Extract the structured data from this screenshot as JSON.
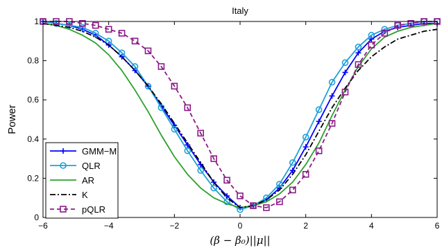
{
  "chart_data": {
    "type": "line",
    "title": "Italy",
    "xlabel": "(β − β₀)||μ||",
    "ylabel": "Power",
    "xlim": [
      -6,
      6
    ],
    "ylim": [
      0,
      1
    ],
    "xticks": [
      "−6",
      "−4",
      "−2",
      "0",
      "2",
      "4",
      "6"
    ],
    "yticks": [
      "0",
      "0.2",
      "0.4",
      "0.6",
      "0.8",
      "1"
    ],
    "grid": false,
    "legend_position": "bottom-left",
    "series": [
      {
        "name": "GMM−M",
        "color": "#0000ff",
        "marker": "plus",
        "dash": "solid",
        "x": [
          -6,
          -5.6,
          -5.2,
          -4.8,
          -4.4,
          -4,
          -3.6,
          -3.2,
          -2.8,
          -2.4,
          -2,
          -1.6,
          -1.2,
          -0.8,
          -0.4,
          0,
          0.4,
          0.8,
          1.2,
          1.6,
          2,
          2.4,
          2.8,
          3.2,
          3.6,
          4,
          4.4,
          4.8,
          5.2,
          5.6,
          6
        ],
        "y": [
          1.0,
          0.99,
          0.98,
          0.96,
          0.93,
          0.88,
          0.82,
          0.75,
          0.67,
          0.57,
          0.47,
          0.37,
          0.27,
          0.18,
          0.11,
          0.05,
          0.06,
          0.09,
          0.15,
          0.24,
          0.36,
          0.49,
          0.62,
          0.74,
          0.84,
          0.91,
          0.95,
          0.97,
          0.98,
          0.99,
          0.99
        ]
      },
      {
        "name": "QLR",
        "color": "#1fa0d8",
        "marker": "circle",
        "dash": "solid",
        "x": [
          -6,
          -5.6,
          -5.2,
          -4.8,
          -4.4,
          -4,
          -3.6,
          -3.2,
          -2.8,
          -2.4,
          -2,
          -1.6,
          -1.2,
          -0.8,
          -0.4,
          0,
          0.4,
          0.8,
          1.2,
          1.6,
          2,
          2.4,
          2.8,
          3.2,
          3.6,
          4,
          4.4,
          4.8,
          5.2,
          5.6,
          6
        ],
        "y": [
          1.0,
          0.99,
          0.98,
          0.97,
          0.94,
          0.9,
          0.84,
          0.77,
          0.67,
          0.56,
          0.45,
          0.34,
          0.24,
          0.15,
          0.08,
          0.04,
          0.06,
          0.1,
          0.17,
          0.28,
          0.41,
          0.55,
          0.69,
          0.79,
          0.87,
          0.93,
          0.96,
          0.98,
          0.99,
          1.0,
          1.0
        ]
      },
      {
        "name": "AR",
        "color": "#2ca02c",
        "marker": "none",
        "dash": "solid",
        "x": [
          -6,
          -5.6,
          -5.2,
          -4.8,
          -4.4,
          -4,
          -3.6,
          -3.2,
          -2.8,
          -2.4,
          -2,
          -1.6,
          -1.2,
          -0.8,
          -0.4,
          0,
          0.4,
          0.8,
          1.2,
          1.6,
          2,
          2.4,
          2.8,
          3.2,
          3.6,
          4,
          4.4,
          4.8,
          5.2,
          5.6,
          6
        ],
        "y": [
          0.99,
          0.98,
          0.96,
          0.93,
          0.89,
          0.83,
          0.75,
          0.65,
          0.54,
          0.42,
          0.31,
          0.22,
          0.15,
          0.1,
          0.07,
          0.05,
          0.06,
          0.08,
          0.12,
          0.18,
          0.27,
          0.38,
          0.52,
          0.65,
          0.77,
          0.86,
          0.92,
          0.95,
          0.97,
          0.98,
          0.99
        ]
      },
      {
        "name": "K",
        "color": "#000000",
        "marker": "none",
        "dash": "dashdot",
        "x": [
          -6,
          -5.6,
          -5.2,
          -4.8,
          -4.4,
          -4,
          -3.6,
          -3.2,
          -2.8,
          -2.4,
          -2,
          -1.6,
          -1.2,
          -0.8,
          -0.4,
          0,
          0.4,
          0.8,
          1.2,
          1.6,
          2,
          2.4,
          2.8,
          3.2,
          3.6,
          4,
          4.4,
          4.8,
          5.2,
          5.6,
          6
        ],
        "y": [
          0.99,
          0.98,
          0.97,
          0.95,
          0.92,
          0.88,
          0.82,
          0.75,
          0.67,
          0.58,
          0.48,
          0.38,
          0.28,
          0.18,
          0.1,
          0.05,
          0.06,
          0.09,
          0.14,
          0.22,
          0.32,
          0.44,
          0.56,
          0.66,
          0.75,
          0.82,
          0.87,
          0.91,
          0.93,
          0.95,
          0.96
        ]
      },
      {
        "name": "pQLR",
        "color": "#8b1a89",
        "marker": "square",
        "dash": "dashed",
        "x": [
          -6,
          -5.6,
          -5.2,
          -4.8,
          -4.4,
          -4,
          -3.6,
          -3.2,
          -2.8,
          -2.4,
          -2,
          -1.6,
          -1.2,
          -0.8,
          -0.4,
          0,
          0.4,
          0.8,
          1.2,
          1.6,
          2,
          2.4,
          2.8,
          3.2,
          3.6,
          4,
          4.4,
          4.8,
          5.2,
          5.6,
          6
        ],
        "y": [
          1.0,
          1.0,
          1.0,
          0.99,
          0.98,
          0.96,
          0.94,
          0.9,
          0.85,
          0.77,
          0.67,
          0.56,
          0.43,
          0.3,
          0.19,
          0.11,
          0.06,
          0.05,
          0.08,
          0.14,
          0.22,
          0.34,
          0.48,
          0.64,
          0.78,
          0.88,
          0.94,
          0.98,
          0.99,
          1.0,
          1.0
        ]
      }
    ]
  }
}
